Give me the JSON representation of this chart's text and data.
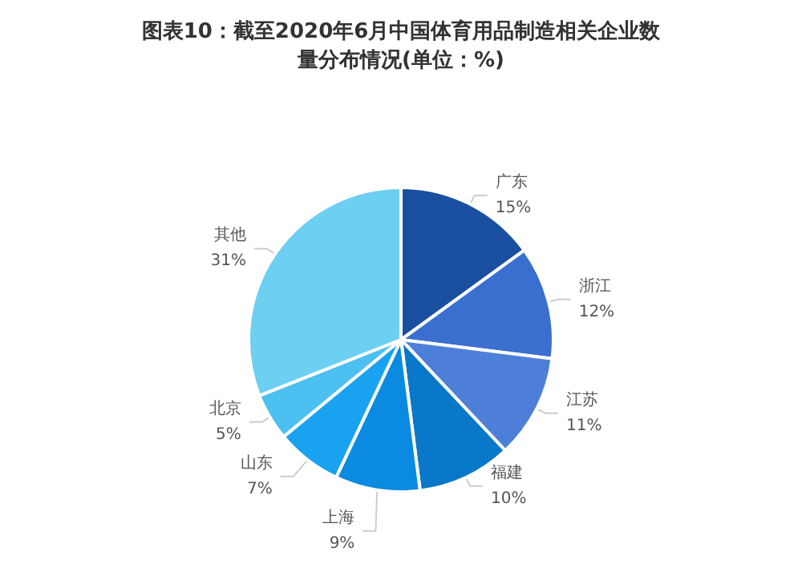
{
  "chart_data": {
    "type": "pie",
    "title": "图表10：截至2020年6月中国体育用品制造相关企业数量分布情况(单位：%)",
    "categories": [
      "广东",
      "浙江",
      "江苏",
      "福建",
      "上海",
      "山东",
      "北京",
      "其他"
    ],
    "values": [
      15,
      12,
      11,
      10,
      9,
      7,
      5,
      31
    ],
    "colors": [
      "#1a4fa0",
      "#3a6fd0",
      "#4d7fd8",
      "#0a78c8",
      "#0a8ae0",
      "#18a2f0",
      "#4cc0f0",
      "#6dcff2"
    ],
    "value_labels": [
      "15%",
      "12%",
      "11%",
      "10%",
      "9%",
      "7%",
      "5%",
      "31%"
    ],
    "legend": false
  }
}
